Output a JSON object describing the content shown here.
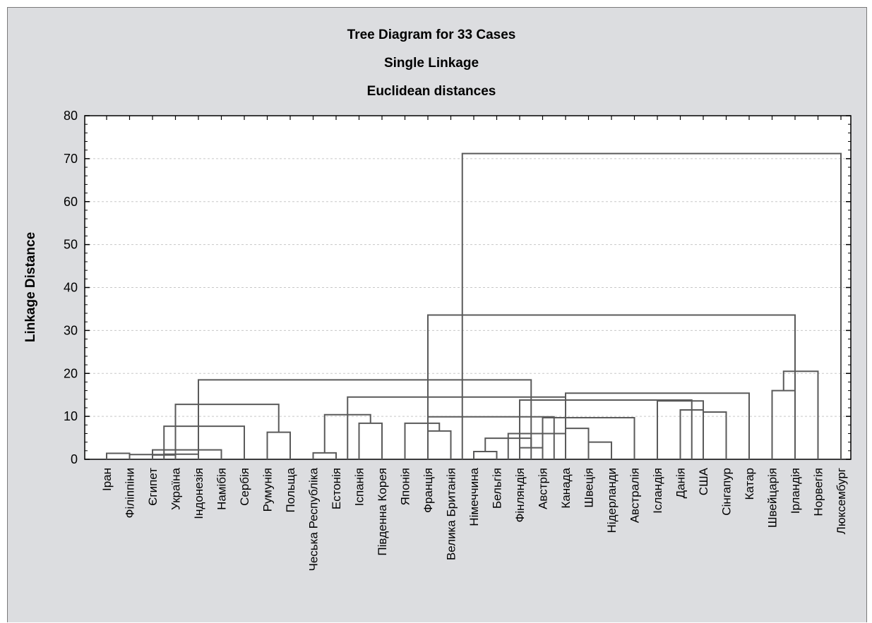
{
  "title": {
    "line1": "Tree Diagram for 33 Cases",
    "line2": "Single Linkage",
    "line3": "Euclidean distances"
  },
  "colors": {
    "panel_bg": "#dcdde0",
    "plot_bg": "#ffffff",
    "line": "#5a5a5a",
    "grid": "#c8c8c8"
  },
  "chart_data": {
    "type": "dendrogram",
    "title": "Tree Diagram for 33 Cases",
    "subtitle": [
      "Single Linkage",
      "Euclidean distances"
    ],
    "ylabel": "Linkage Distance",
    "ylim": [
      0,
      80
    ],
    "yticks": [
      0,
      10,
      20,
      30,
      40,
      50,
      60,
      70,
      80
    ],
    "grid": true,
    "leaves": [
      "Іран",
      "Філіппіни",
      "Єгипет",
      "Україна",
      "Індонезія",
      "Намібія",
      "Сербія",
      "Румунія",
      "Польща",
      "Чеська Республіка",
      "Естонія",
      "Іспанія",
      "Південна Корея",
      "Японія",
      "Франція",
      "Велика Британія",
      "Німеччина",
      "Бельгія",
      "Фінляндія",
      "Австрія",
      "Канада",
      "Швеція",
      "Нідерланди",
      "Австралія",
      "Ісландія",
      "Данія",
      "США",
      "Сінгапур",
      "Катар",
      "Швейцарія",
      "Ірландія",
      "Норвегія",
      "Люксембург"
    ],
    "merges": [
      {
        "left": "Єгипет",
        "right": "Україна",
        "height": 1.0
      },
      {
        "left": "Філіппіни",
        "right": "Єгипет+Україна",
        "height": 1.1
      },
      {
        "left": "Єгипет+Україна",
        "right": "Індонезія",
        "height": 1.2
      },
      {
        "left": "Іран",
        "right": "Філіппіни",
        "height": 1.4
      },
      {
        "left": "Іран–Індонезія",
        "right": "Намібія",
        "height": 2.2
      },
      {
        "left": "Іран–Намібія",
        "right": "Сербія",
        "height": 7.7
      },
      {
        "left": "Румунія",
        "right": "Польща",
        "height": 6.3
      },
      {
        "left": "Іран–Сербія",
        "right": "Румунія+Польща",
        "height": 12.8
      },
      {
        "left": "Чеська Республіка",
        "right": "Естонія",
        "height": 1.5
      },
      {
        "left": "Іспанія",
        "right": "Південна Корея",
        "height": 8.4
      },
      {
        "left": "Чеська Республіка+Естонія",
        "right": "Іспанія+Південна Корея",
        "height": 10.4
      },
      {
        "left": "Німеччина",
        "right": "Бельгія",
        "height": 1.8
      },
      {
        "left": "Фінляндія",
        "right": "Австрія",
        "height": 2.7
      },
      {
        "left": "Німеччина+Бельгія",
        "right": "Фінляндія+Австрія",
        "height": 4.9
      },
      {
        "left": "Німеччина–Австрія",
        "right": "Канада",
        "height": 6.0
      },
      {
        "left": "Канада",
        "right": "Швеція",
        "height": 7.2
      },
      {
        "left": "Швеція",
        "right": "Нідерланди",
        "height": 4.0
      },
      {
        "left": "Німеччина–Нідерланди",
        "right": "Австралія",
        "height": 9.7
      },
      {
        "left": "Франція",
        "right": "Велика Британія",
        "height": 6.6
      },
      {
        "left": "Японія",
        "right": "Франція+Велика Британія",
        "height": 8.4
      },
      {
        "left": "Японія–Велика Британія",
        "right": "Німеччина–Австралія",
        "height": 9.9
      },
      {
        "left": "Данія",
        "right": "США",
        "height": 11.5
      },
      {
        "left": "США",
        "right": "Сінгапур",
        "height": 11.0
      },
      {
        "left": "Ісландія",
        "right": "Данія–Сінгапур",
        "height": 13.6
      },
      {
        "left": "Японія–Австралія",
        "right": "Ісландія–Сінгапур",
        "height": 13.8
      },
      {
        "left": "Чеська Республіка–Південна Корея",
        "right": "Японія–Сінгапур",
        "height": 14.5
      },
      {
        "left": "Японія–Сінгапур",
        "right": "Катар",
        "height": 15.4
      },
      {
        "left": "Іран–Польща",
        "right": "Чеська Республіка–Катар",
        "height": 18.5
      },
      {
        "left": "Швейцарія",
        "right": "Ірландія",
        "height": 16.0
      },
      {
        "left": "Швейцарія+Ірландія",
        "right": "Норвегія",
        "height": 20.5
      },
      {
        "left": "Іран–Катар",
        "right": "Швейцарія–Норвегія",
        "height": 33.6
      },
      {
        "left": "Іран–Норвегія",
        "right": "Люксембург",
        "height": 71.2
      }
    ]
  }
}
